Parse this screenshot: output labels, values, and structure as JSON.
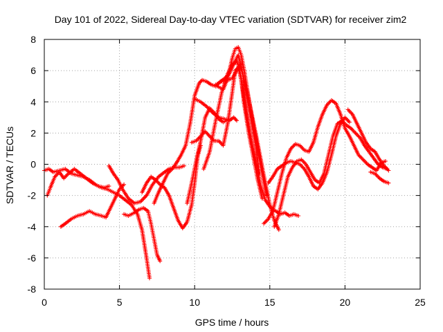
{
  "chart_data": {
    "type": "scatter",
    "title": "Day 101 of 2022, Sidereal Day-to-day VTEC variation (SDTVAR) for receiver zim2",
    "xlabel": "GPS time / hours",
    "ylabel": "SDTVAR / TECUs",
    "xlim": [
      0,
      25
    ],
    "ylim": [
      -8,
      8
    ],
    "xticks": [
      0,
      5,
      10,
      15,
      20,
      25
    ],
    "yticks": [
      -8,
      -6,
      -4,
      -2,
      0,
      2,
      4,
      6,
      8
    ],
    "grid": true,
    "marker": "plus",
    "color": "#ff0000",
    "series": [
      {
        "x": [
          0.0,
          0.3,
          0.6,
          1.0,
          1.4,
          1.8,
          2.2,
          2.6,
          3.0,
          3.4,
          3.8,
          4.2,
          4.6,
          5.0,
          5.4,
          5.8,
          6.2,
          6.5,
          6.8,
          7.0
        ],
        "y": [
          -0.4,
          -0.3,
          -0.5,
          -0.4,
          -0.3,
          -0.6,
          -0.7,
          -0.8,
          -1.0,
          -1.3,
          -1.5,
          -1.6,
          -1.8,
          -2.0,
          -2.3,
          -2.6,
          -3.2,
          -4.2,
          -6.0,
          -7.3
        ]
      },
      {
        "x": [
          0.2,
          0.4,
          0.7,
          1.0,
          1.3,
          1.6,
          2.0,
          2.4,
          2.8,
          3.2,
          3.6,
          4.0,
          4.3
        ],
        "y": [
          -2.0,
          -1.5,
          -0.8,
          -0.5,
          -0.9,
          -0.6,
          -0.3,
          -0.6,
          -0.9,
          -1.2,
          -1.4,
          -1.5,
          -1.4
        ]
      },
      {
        "x": [
          1.1,
          1.4,
          1.8,
          2.2,
          2.6,
          3.0,
          3.4,
          3.8,
          4.1,
          4.4,
          4.7,
          5.0,
          5.3
        ],
        "y": [
          -4.0,
          -3.8,
          -3.5,
          -3.3,
          -3.2,
          -3.0,
          -3.2,
          -3.3,
          -3.4,
          -2.8,
          -2.2,
          -1.6,
          -1.3
        ]
      },
      {
        "x": [
          4.3,
          4.6,
          4.9,
          5.2,
          5.6,
          6.0,
          6.4,
          6.8,
          7.2,
          7.6,
          8.0,
          8.3,
          8.7,
          9.0,
          9.3
        ],
        "y": [
          -0.1,
          -0.6,
          -1.0,
          -1.6,
          -2.2,
          -2.5,
          -2.4,
          -2.0,
          -1.3,
          -0.8,
          -0.5,
          -0.3,
          -0.2,
          -0.2,
          -0.1
        ]
      },
      {
        "x": [
          5.3,
          5.6,
          6.0,
          6.3,
          6.6,
          6.9,
          7.1,
          7.3,
          7.5,
          7.7
        ],
        "y": [
          -3.2,
          -3.3,
          -3.1,
          -2.9,
          -2.8,
          -3.0,
          -3.8,
          -4.8,
          -5.8,
          -6.2
        ]
      },
      {
        "x": [
          6.5,
          6.8,
          7.1,
          7.4,
          7.7,
          8.0,
          8.3,
          8.6,
          8.9,
          9.2,
          9.5,
          9.8,
          10.0,
          10.2,
          10.4
        ],
        "y": [
          -1.8,
          -1.2,
          -0.8,
          -1.0,
          -1.3,
          -1.5,
          -2.0,
          -2.8,
          -3.6,
          -4.1,
          -3.7,
          -2.6,
          -1.2,
          0.5,
          1.2
        ]
      },
      {
        "x": [
          7.3,
          7.6,
          7.9,
          8.2,
          8.5,
          8.8,
          9.1,
          9.4,
          9.7,
          10.0,
          10.3,
          10.5,
          10.8,
          11.1,
          11.4,
          11.7,
          12.0,
          12.3,
          12.6,
          12.9,
          13.2,
          13.5,
          13.8,
          14.1,
          14.3
        ],
        "y": [
          -2.5,
          -1.8,
          -1.2,
          -0.6,
          -0.3,
          0.1,
          0.6,
          1.2,
          2.6,
          4.4,
          5.2,
          5.4,
          5.3,
          5.1,
          5.0,
          5.3,
          5.5,
          5.8,
          6.4,
          7.0,
          5.8,
          4.2,
          2.6,
          1.0,
          -0.6
        ]
      },
      {
        "x": [
          9.5,
          9.8,
          10.1,
          10.4,
          10.7,
          11.0,
          11.3,
          11.6,
          11.9,
          12.1
        ],
        "y": [
          -2.5,
          -1.2,
          0.2,
          1.5,
          3.0,
          3.6,
          3.3,
          2.9,
          2.7,
          2.8
        ]
      },
      {
        "x": [
          9.8,
          10.1,
          10.4,
          10.7,
          11.0,
          11.3,
          11.6,
          11.9,
          12.2,
          12.5,
          12.7,
          12.9,
          13.1,
          13.3,
          13.6,
          13.9,
          14.2,
          14.5
        ],
        "y": [
          1.4,
          1.5,
          1.8,
          2.1,
          1.8,
          1.5,
          1.5,
          1.2,
          2.6,
          4.6,
          6.0,
          6.2,
          5.4,
          3.8,
          2.0,
          0.5,
          -1.0,
          -2.2
        ]
      },
      {
        "x": [
          10.6,
          11.0,
          11.4,
          11.8,
          12.2,
          12.5,
          12.8,
          13.0,
          13.2,
          13.5,
          13.8,
          14.1,
          14.4,
          14.7,
          15.0,
          15.2,
          15.4,
          15.7,
          16.0,
          16.3,
          16.6,
          16.9
        ],
        "y": [
          -0.3,
          0.8,
          2.8,
          4.6,
          5.8,
          6.4,
          6.6,
          6.0,
          4.8,
          3.0,
          1.4,
          0.0,
          -1.4,
          -2.3,
          -2.7,
          -2.9,
          -3.0,
          -3.2,
          -3.1,
          -3.3,
          -3.2,
          -3.3
        ]
      },
      {
        "x": [
          10.0,
          10.4,
          10.8,
          11.2,
          11.6,
          12.0,
          12.3,
          12.6,
          12.8
        ],
        "y": [
          4.2,
          4.0,
          3.7,
          3.3,
          3.0,
          2.9,
          2.8,
          3.0,
          2.8
        ]
      },
      {
        "x": [
          11.4,
          11.8,
          12.2,
          12.5,
          12.8,
          13.0,
          13.2,
          13.5,
          13.8,
          14.1,
          14.4,
          14.7,
          15.0,
          15.3,
          15.6
        ],
        "y": [
          5.1,
          5.3,
          5.4,
          5.5,
          6.0,
          6.3,
          5.8,
          4.6,
          3.2,
          1.8,
          0.3,
          -1.2,
          -2.6,
          -3.6,
          -4.2
        ]
      },
      {
        "x": [
          11.5,
          11.9,
          12.2,
          12.5,
          12.7,
          12.9,
          13.1,
          13.3,
          13.6,
          13.9,
          14.2,
          14.5,
          14.8
        ],
        "y": [
          5.0,
          4.8,
          5.5,
          6.8,
          7.4,
          7.5,
          7.0,
          6.0,
          4.2,
          2.5,
          1.0,
          -0.6,
          -2.0
        ]
      },
      {
        "x": [
          14.6,
          14.9,
          15.2,
          15.5,
          15.8,
          16.1,
          16.4,
          16.7,
          17.0,
          17.3,
          17.6,
          17.9,
          18.2,
          18.5,
          18.8,
          19.1,
          19.4,
          19.7,
          20.0,
          20.3,
          20.6,
          20.9,
          21.2,
          21.5,
          21.8,
          22.1,
          22.4,
          22.7
        ],
        "y": [
          -3.8,
          -3.5,
          -3.0,
          -1.8,
          -0.6,
          0.4,
          1.0,
          1.3,
          1.2,
          0.9,
          0.8,
          1.4,
          2.4,
          3.2,
          3.8,
          4.1,
          3.9,
          3.2,
          2.3,
          1.8,
          1.2,
          0.6,
          0.3,
          0.0,
          -0.2,
          -0.4,
          0.1,
          0.2
        ]
      },
      {
        "x": [
          14.9,
          15.2,
          15.5,
          15.8,
          16.1,
          16.4,
          16.7,
          17.0,
          17.3,
          17.6,
          17.9,
          18.2,
          18.5,
          18.8,
          19.1,
          19.4,
          19.7,
          20.0,
          20.3
        ],
        "y": [
          -1.2,
          -0.8,
          -0.3,
          -0.1,
          0.1,
          0.2,
          0.1,
          0.0,
          -0.3,
          -0.8,
          -1.4,
          -1.6,
          -1.2,
          -0.5,
          0.6,
          1.8,
          2.6,
          3.0,
          2.7
        ]
      },
      {
        "x": [
          15.3,
          15.6,
          15.9,
          16.2,
          16.5,
          16.8,
          17.1,
          17.4,
          17.7,
          18.0,
          18.3,
          18.6,
          18.9,
          19.2,
          19.5,
          19.8,
          20.1,
          20.4,
          20.7,
          21.0,
          21.3,
          21.6,
          21.9,
          22.2,
          22.5,
          22.8
        ],
        "y": [
          -4.0,
          -3.2,
          -2.0,
          -0.8,
          -0.2,
          0.2,
          0.3,
          0.0,
          -0.5,
          -1.0,
          -1.2,
          -0.6,
          0.6,
          1.8,
          2.6,
          2.8,
          2.5,
          2.3,
          2.0,
          1.7,
          1.2,
          0.8,
          0.4,
          0.0,
          -0.2,
          -0.3
        ]
      },
      {
        "x": [
          20.2,
          20.5,
          20.8,
          21.1,
          21.4,
          21.7,
          22.0,
          22.3,
          22.6,
          22.9
        ],
        "y": [
          3.5,
          3.2,
          2.6,
          2.0,
          1.4,
          1.0,
          0.8,
          0.3,
          -0.1,
          -0.4
        ]
      },
      {
        "x": [
          21.7,
          22.0,
          22.3,
          22.6,
          22.9
        ],
        "y": [
          -0.5,
          -0.6,
          -0.9,
          -1.1,
          -1.2
        ]
      }
    ]
  }
}
